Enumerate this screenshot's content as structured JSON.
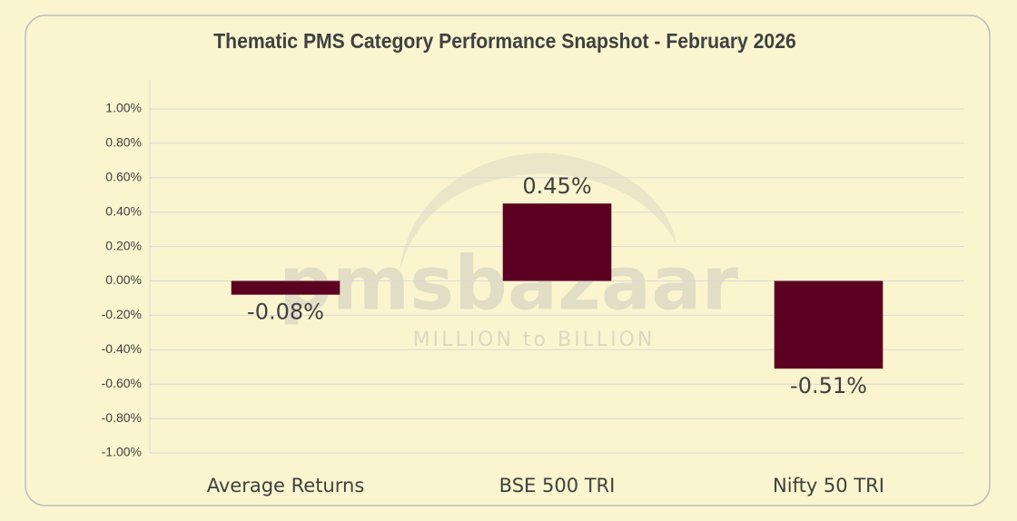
{
  "chart_data": {
    "type": "bar",
    "title": "Thematic PMS Category Performance Snapshot - February 2026",
    "watermark": "pmsbazaar",
    "watermark_tagline": "MILLION to BILLION",
    "categories": [
      "Average Returns",
      "BSE 500 TRI",
      "Nifty 50 TRI"
    ],
    "values": [
      -0.08,
      0.45,
      -0.51
    ],
    "value_labels": [
      "-0.08%",
      "0.45%",
      "-0.51%"
    ],
    "color": "#5c0022",
    "ylim": [
      -1,
      1
    ],
    "yticks": [
      {
        "value": -1,
        "label": "-1.00%"
      },
      {
        "value": -0.8,
        "label": "-0.80%"
      },
      {
        "value": -0.6,
        "label": "-0.60%"
      },
      {
        "value": -0.4,
        "label": "-0.40%"
      },
      {
        "value": -0.2,
        "label": "-0.20%"
      },
      {
        "value": 0,
        "label": "0.00%"
      },
      {
        "value": 0.2,
        "label": "0.20%"
      },
      {
        "value": 0.4,
        "label": "0.40%"
      },
      {
        "value": 0.6,
        "label": "0.60%"
      },
      {
        "value": 0.8,
        "label": "0.80%"
      },
      {
        "value": 1,
        "label": "1.00%"
      }
    ],
    "grid": true
  }
}
